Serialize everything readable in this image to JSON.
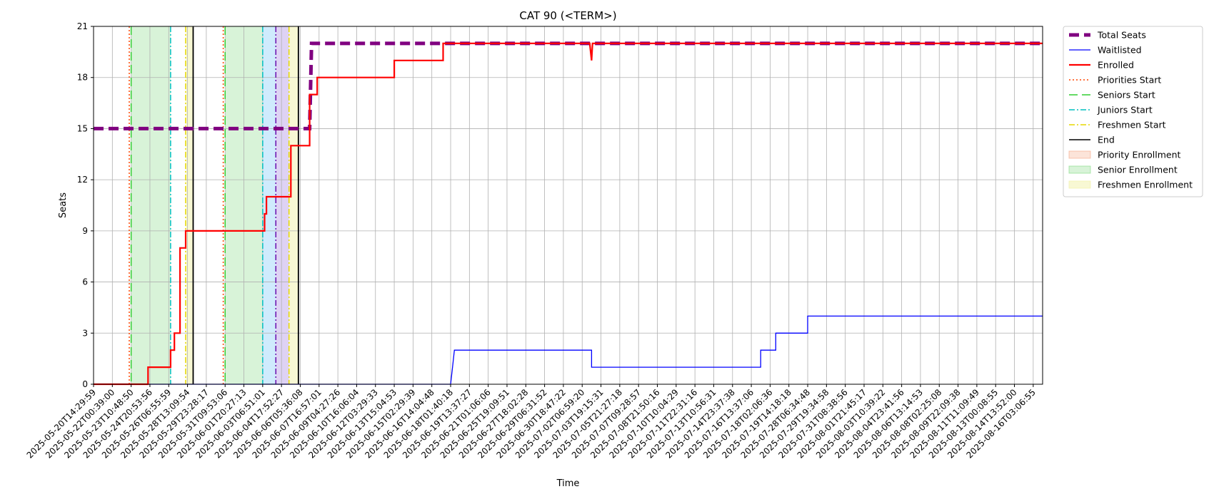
{
  "chart_data": {
    "type": "line",
    "title": "CAT 90 (<TERM>)",
    "xlabel": "Time",
    "ylabel": "Seats",
    "ylim": [
      0,
      21
    ],
    "yticks": [
      0,
      3,
      6,
      9,
      12,
      15,
      18,
      21
    ],
    "grid": true,
    "legend_position": "outside-right-top",
    "x_tick_labels": [
      "2025-05-20T14:29:59",
      "2025-05-22T00:39:00",
      "2025-05-23T10:48:50",
      "2025-05-24T20:53:56",
      "2025-05-26T06:55:59",
      "2025-05-28T13:09:54",
      "2025-05-29T23:28:17",
      "2025-05-31T09:53:06",
      "2025-06-01T20:27:13",
      "2025-06-03T06:51:01",
      "2025-06-04T17:52:27",
      "2025-06-06T05:36:08",
      "2025-06-07T16:57:01",
      "2025-06-09T04:27:26",
      "2025-06-10T16:06:04",
      "2025-06-12T03:29:33",
      "2025-06-13T15:04:53",
      "2025-06-15T02:29:39",
      "2025-06-16T14:04:48",
      "2025-06-18T01:40:18",
      "2025-06-19T13:37:27",
      "2025-06-21T01:06:06",
      "2025-06-25T19:09:51",
      "2025-06-27T18:02:28",
      "2025-06-29T06:31:52",
      "2025-06-30T18:47:22",
      "2025-07-02T06:59:20",
      "2025-07-03T19:15:31",
      "2025-07-05T21:27:18",
      "2025-07-07T09:28:57",
      "2025-07-08T21:50:16",
      "2025-07-10T10:04:29",
      "2025-07-11T22:31:16",
      "2025-07-13T10:56:31",
      "2025-07-14T23:37:38",
      "2025-07-16T13:37:06",
      "2025-07-18T02:06:36",
      "2025-07-19T14:18:18",
      "2025-07-28T06:34:48",
      "2025-07-29T19:34:58",
      "2025-07-31T08:38:56",
      "2025-08-01T21:45:17",
      "2025-08-03T10:39:22",
      "2025-08-04T23:41:56",
      "2025-08-06T13:14:53",
      "2025-08-08T02:25:08",
      "2025-08-09T22:09:38",
      "2025-08-11T11:09:49",
      "2025-08-13T00:08:55",
      "2025-08-14T13:52:00",
      "2025-08-16T03:06:55"
    ],
    "series": [
      {
        "name": "Total Seats",
        "style": "dashed",
        "color": "#800080",
        "points": [
          [
            0,
            15
          ],
          [
            11.5,
            15
          ],
          [
            11.6,
            20
          ],
          [
            50.5,
            20
          ]
        ]
      },
      {
        "name": "Waitlisted",
        "style": "solid",
        "color": "#0000ff",
        "points": [
          [
            0,
            0
          ],
          [
            19,
            0
          ],
          [
            19.1,
            1
          ],
          [
            19.2,
            2
          ],
          [
            26.5,
            2
          ],
          [
            26.5,
            1
          ],
          [
            35.5,
            1
          ],
          [
            35.5,
            2
          ],
          [
            36.3,
            2
          ],
          [
            36.3,
            3
          ],
          [
            38,
            3
          ],
          [
            38,
            4
          ],
          [
            50.5,
            4
          ]
        ]
      },
      {
        "name": "Enrolled",
        "style": "solid",
        "color": "#ff0000",
        "points": [
          [
            0,
            0
          ],
          [
            2.9,
            0
          ],
          [
            2.9,
            1
          ],
          [
            4.1,
            1
          ],
          [
            4.1,
            2
          ],
          [
            4.3,
            2
          ],
          [
            4.3,
            3
          ],
          [
            4.6,
            3
          ],
          [
            4.6,
            8
          ],
          [
            4.9,
            8
          ],
          [
            4.9,
            9
          ],
          [
            9.1,
            9
          ],
          [
            9.1,
            10
          ],
          [
            9.2,
            10
          ],
          [
            9.2,
            11
          ],
          [
            10.5,
            11
          ],
          [
            10.5,
            14
          ],
          [
            11.5,
            14
          ],
          [
            11.5,
            17
          ],
          [
            11.9,
            17
          ],
          [
            11.9,
            18
          ],
          [
            16,
            18
          ],
          [
            16,
            19
          ],
          [
            18.6,
            19
          ],
          [
            18.6,
            20
          ],
          [
            26.4,
            20
          ],
          [
            26.5,
            19
          ],
          [
            26.55,
            20
          ],
          [
            50.5,
            20
          ]
        ]
      }
    ],
    "markers": [
      {
        "name": "Priorities Start",
        "style": "dotted",
        "color": "#ff4500",
        "x": [
          1.9,
          6.9
        ]
      },
      {
        "name": "Seniors Start",
        "style": "dashed",
        "color": "#32cd32",
        "x": [
          2.0,
          7.0
        ]
      },
      {
        "name": "Juniors Start",
        "style": "dashdot",
        "color": "#00bfbf",
        "x": [
          4.1,
          9.0
        ]
      },
      {
        "name": "Freshmen Start",
        "style": "dashdot",
        "color": "#e6d800",
        "x": [
          4.9,
          10.4
        ]
      },
      {
        "name": "End",
        "style": "solid",
        "color": "#000000",
        "x": [
          5.3,
          10.9
        ]
      },
      {
        "name": "",
        "style": "dashdot",
        "color": "#6a0dad",
        "x": [
          9.7
        ]
      }
    ],
    "regions": [
      {
        "name": "Priority Enrollment",
        "color": "#f4a582",
        "opacity": 0.3,
        "ranges": []
      },
      {
        "name": "Senior Enrollment",
        "color": "#7fd87f",
        "opacity": 0.3,
        "ranges": [
          [
            2.0,
            4.1
          ],
          [
            7.0,
            9.0
          ]
        ]
      },
      {
        "name": "",
        "color": "#87cefa",
        "opacity": 0.4,
        "ranges": [
          [
            9.0,
            9.7
          ]
        ]
      },
      {
        "name": "",
        "color": "#b69ce6",
        "opacity": 0.45,
        "ranges": [
          [
            9.7,
            10.4
          ]
        ]
      },
      {
        "name": "Freshmen Enrollment",
        "color": "#f0f0a0",
        "opacity": 0.45,
        "ranges": [
          [
            4.9,
            5.3
          ],
          [
            10.4,
            10.9
          ]
        ]
      }
    ]
  }
}
